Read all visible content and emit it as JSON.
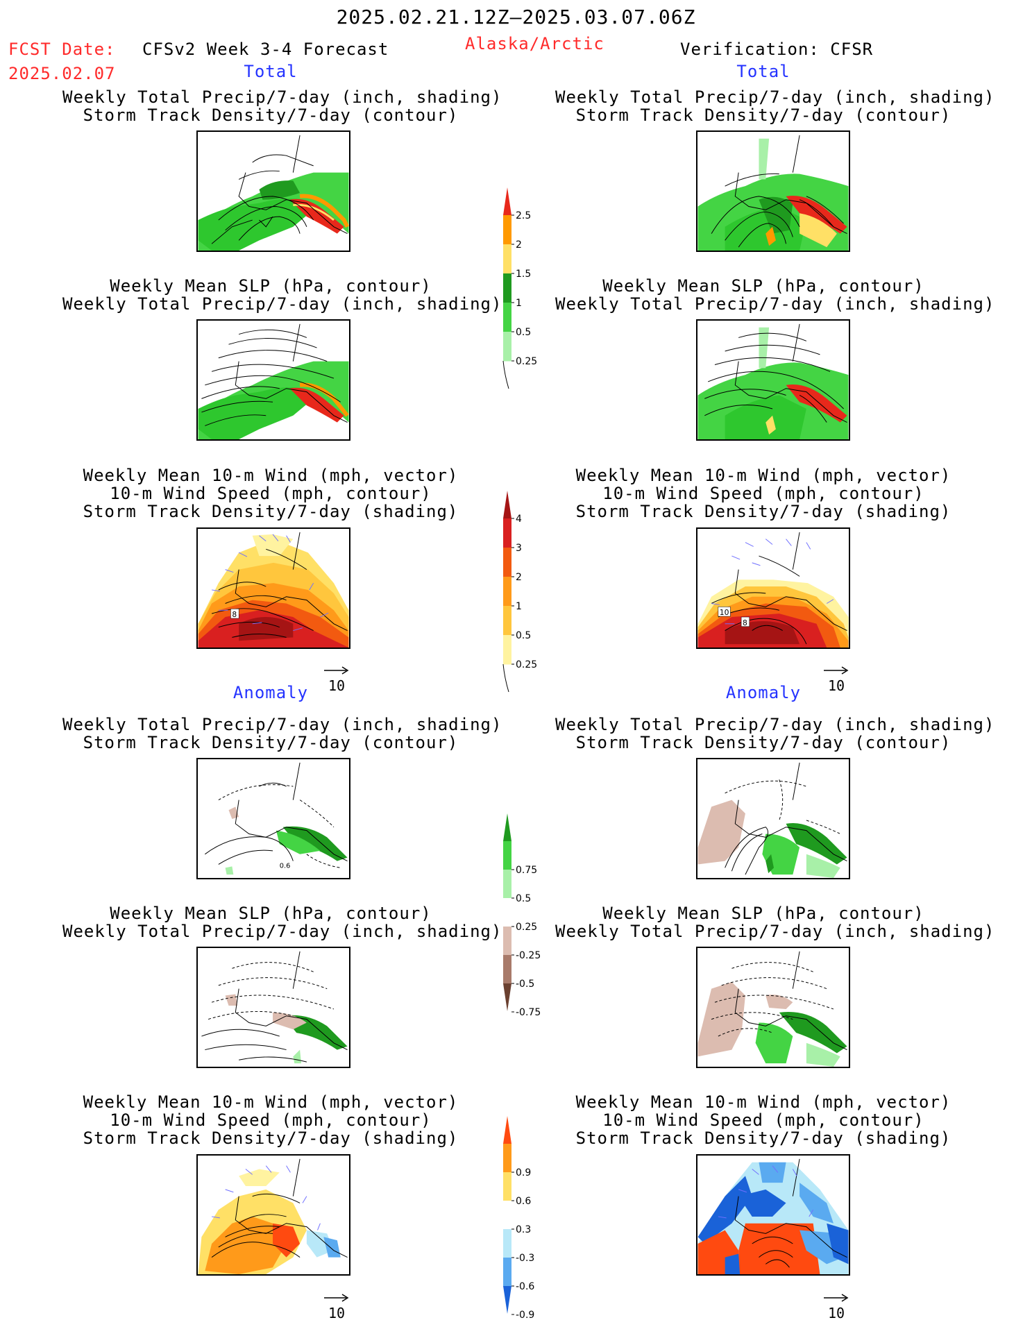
{
  "header": {
    "period": "2025.02.21.12Z–2025.03.07.06Z",
    "fcst_label": "FCST Date:",
    "fcst_date": "2025.02.07",
    "forecast_title": "CFSv2 Week 3-4 Forecast",
    "region": "Alaska/Arctic",
    "verification": "Verification: CFSR"
  },
  "sections": {
    "total": "Total",
    "anomaly": "Anomaly"
  },
  "panel_titles": {
    "precip_track": [
      "Weekly Total Precip/7-day (inch, shading)",
      "Storm Track Density/7-day (contour)"
    ],
    "slp_precip": [
      "Weekly Mean SLP (hPa, contour)",
      "Weekly Total Precip/7-day (inch, shading)"
    ],
    "wind": [
      "Weekly Mean 10-m Wind (mph, vector)",
      "10-m Wind Speed (mph, contour)",
      "Storm Track Density/7-day (shading)"
    ]
  },
  "vector_key": "10",
  "contour_labels": {
    "total_wind_left": "8",
    "total_wind_right_a": "10",
    "total_wind_right_b": "8",
    "anom_precip_left": "0.6"
  },
  "colorbars": {
    "precip_total": {
      "labels": [
        "2.5",
        "2",
        "1.5",
        "1",
        "0.5",
        "0.25"
      ],
      "colors": [
        "#e8281b",
        "#ff9900",
        "#ffe066",
        "#1f9a1f",
        "#44d444",
        "#a8f0a8"
      ]
    },
    "storm_total": {
      "labels": [
        "4",
        "3",
        "2",
        "1",
        "0.5",
        "0.25"
      ],
      "colors": [
        "#a51414",
        "#d92020",
        "#f25a10",
        "#ff9a1a",
        "#ffc63d",
        "#fff3a0"
      ]
    },
    "precip_anom": {
      "labels": [
        "0.75",
        "0.5",
        "0.25",
        "-0.25",
        "-0.5",
        "-0.75"
      ],
      "colors": [
        "#1f9a1f",
        "#44d444",
        "#a8f0a8",
        "#ffffff",
        "#dcbcb0",
        "#a87a6a",
        "#6a4030"
      ]
    },
    "storm_anom": {
      "labels": [
        "0.9",
        "0.6",
        "0.3",
        "-0.3",
        "-0.6",
        "-0.9"
      ],
      "colors": [
        "#ff4a10",
        "#ff9a1a",
        "#ffe066",
        "#ffffff",
        "#b8e8f8",
        "#5aaaf0",
        "#1a62d8"
      ]
    }
  },
  "colors": {
    "title_red": "#ff2a2a",
    "section_blue": "#2433ff",
    "vector_blue": "#6f6fff"
  }
}
